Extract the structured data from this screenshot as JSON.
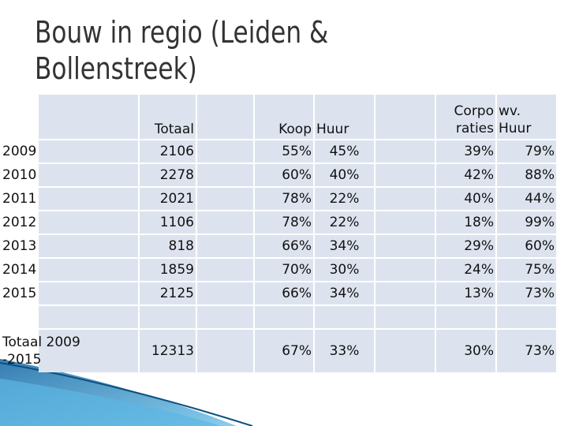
{
  "title": {
    "line1": "Bouw in regio (Leiden &",
    "line2": "Bollenstreek)"
  },
  "table": {
    "headers": {
      "totaal": "Totaal",
      "koop": "Koop",
      "huur": "Huur",
      "corporaties": "Corpo raties",
      "wv_huur": "wv. Huur"
    },
    "rows": [
      {
        "year": "2009",
        "totaal": "2106",
        "koop": "55%",
        "huur": "45%",
        "corporaties": "39%",
        "wv_huur": "79%"
      },
      {
        "year": "2010",
        "totaal": "2278",
        "koop": "60%",
        "huur": "40%",
        "corporaties": "42%",
        "wv_huur": "88%"
      },
      {
        "year": "2011",
        "totaal": "2021",
        "koop": "78%",
        "huur": "22%",
        "corporaties": "40%",
        "wv_huur": "44%"
      },
      {
        "year": "2012",
        "totaal": "1106",
        "koop": "78%",
        "huur": "22%",
        "corporaties": "18%",
        "wv_huur": "99%"
      },
      {
        "year": "2013",
        "totaal": "818",
        "koop": "66%",
        "huur": "34%",
        "corporaties": "29%",
        "wv_huur": "60%"
      },
      {
        "year": "2014",
        "totaal": "1859",
        "koop": "70%",
        "huur": "30%",
        "corporaties": "24%",
        "wv_huur": "75%"
      },
      {
        "year": "2015",
        "totaal": "2125",
        "koop": "66%",
        "huur": "34%",
        "corporaties": "13%",
        "wv_huur": "73%"
      }
    ],
    "total": {
      "label": "Totaal 2009 -2015",
      "totaal": "12313",
      "koop": "67%",
      "huur": "33%",
      "corporaties": "30%",
      "wv_huur": "73%"
    }
  },
  "colors": {
    "cell_bg": "#dde3ee",
    "title_text": "#333333",
    "decoration_blue": "#4aa8d8"
  }
}
